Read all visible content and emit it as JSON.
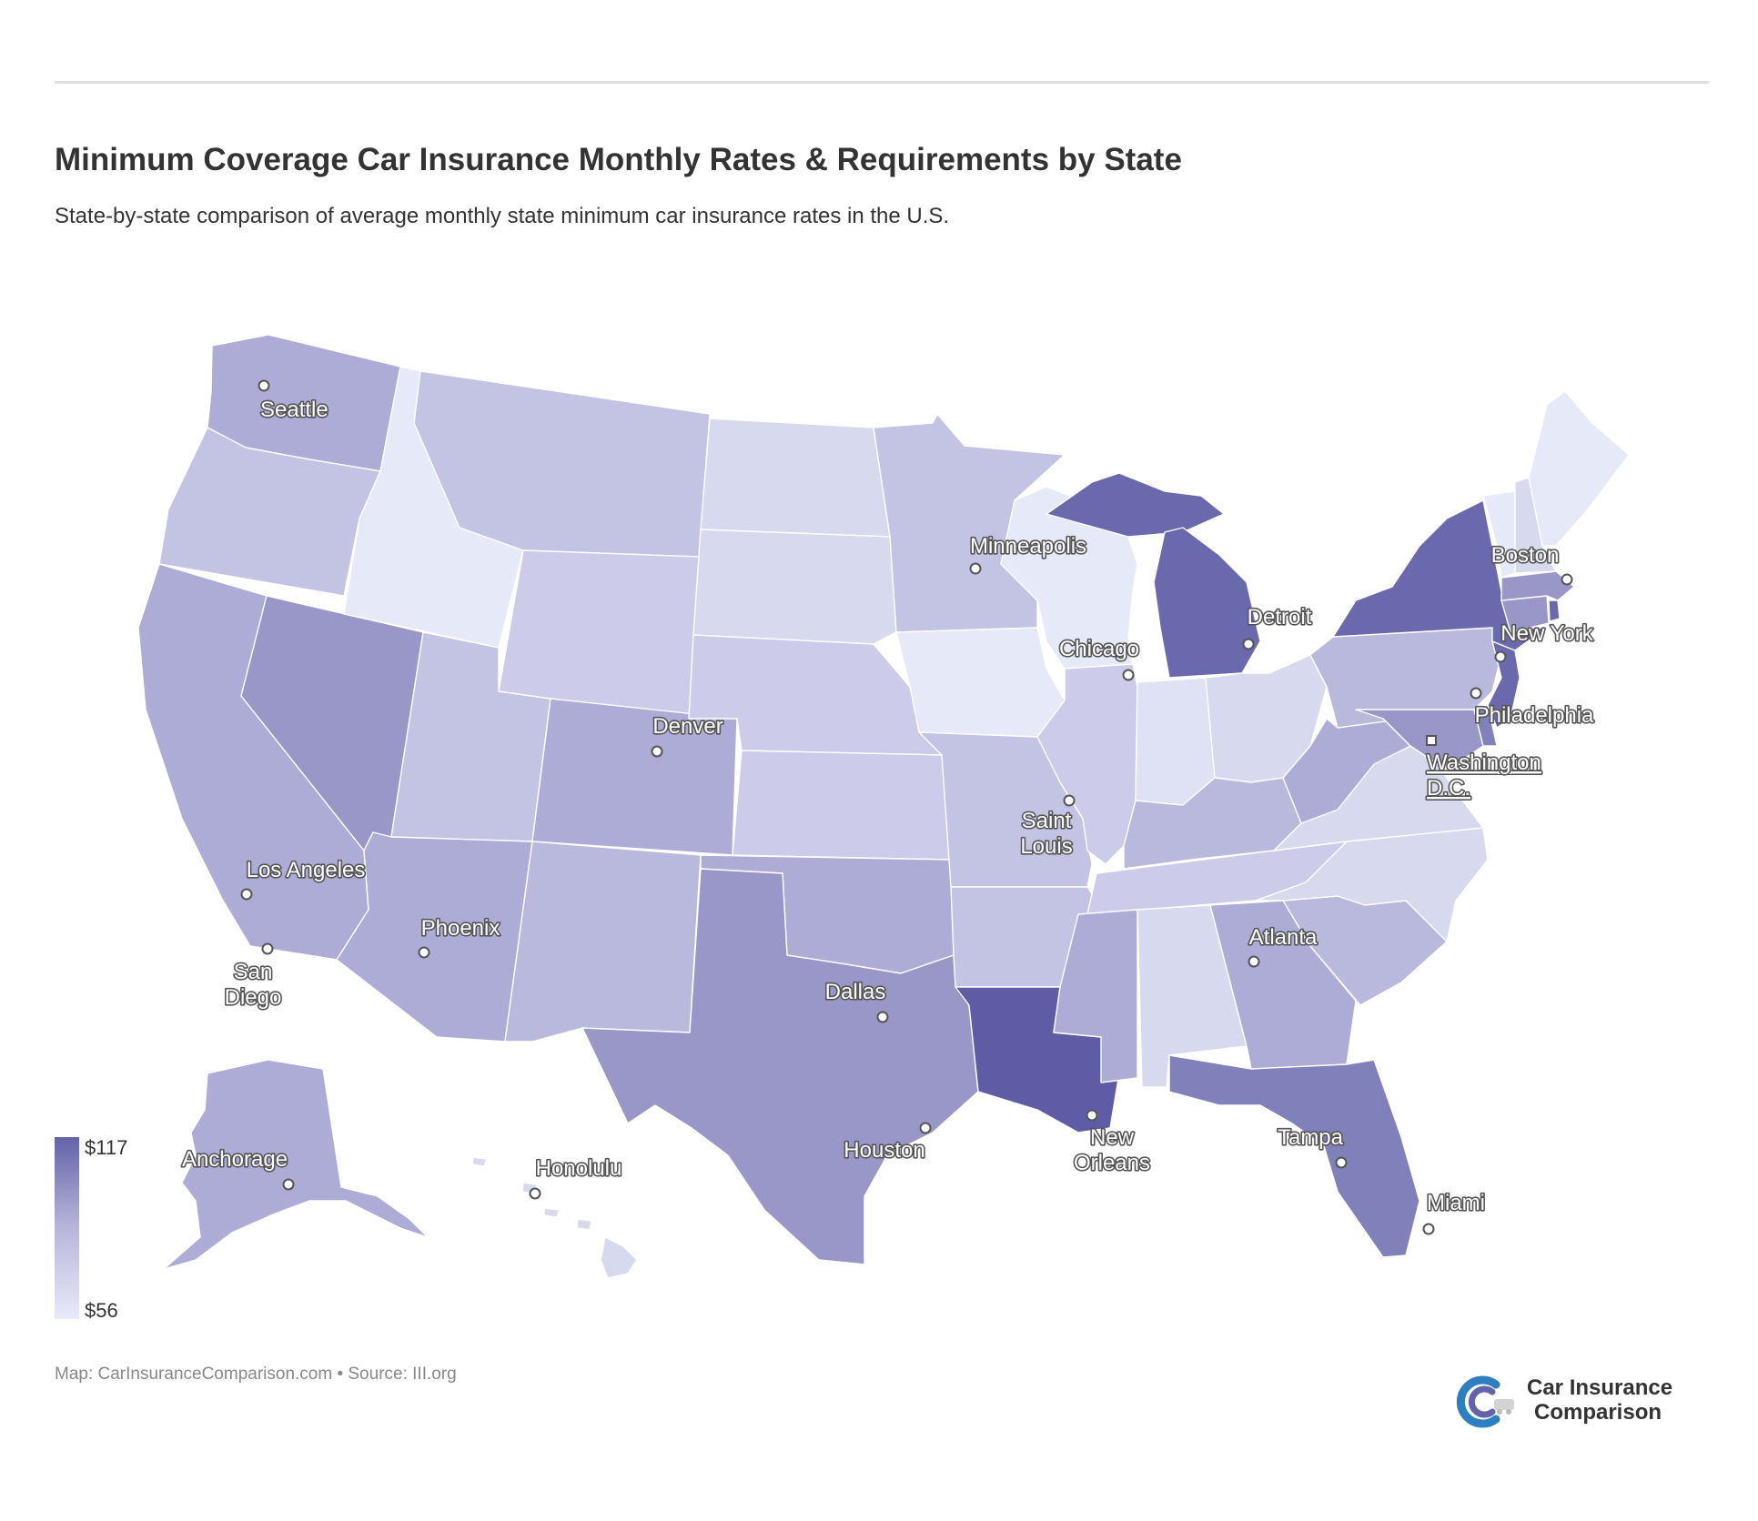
{
  "header": {
    "title": "Minimum Coverage Car Insurance Monthly Rates & Requirements by State",
    "subtitle": "State-by-state comparison of average monthly state minimum car insurance rates in the U.S."
  },
  "legend": {
    "max_label": "$117",
    "min_label": "$56",
    "min_value": 56,
    "max_value": 117,
    "color_low": "#e8eafa",
    "color_high": "#6263a8"
  },
  "footer": {
    "credit": "Map: CarInsuranceComparison.com • Source: III.org"
  },
  "logo": {
    "line1": "Car Insurance",
    "line2": "Comparison",
    "icon": "car-insurance-comparison-logo-icon"
  },
  "map": {
    "type": "choropleth",
    "colors": {
      "c1": "#e6e9f8",
      "c2": "#dfe1f4",
      "c3": "#d7d9ef",
      "c4": "#ccccea",
      "c5": "#c3c3e4",
      "c6": "#b9b8dd",
      "c7": "#adacd6",
      "c8": "#9897c8",
      "c9": "#8080bb",
      "c10": "#6a69ad",
      "c11": "#5d5ca4"
    },
    "cities": [
      {
        "name": "Seattle",
        "line2": ""
      },
      {
        "name": "Minneapolis",
        "line2": ""
      },
      {
        "name": "Boston",
        "line2": ""
      },
      {
        "name": "Detroit",
        "line2": ""
      },
      {
        "name": "Chicago",
        "line2": ""
      },
      {
        "name": "New York",
        "line2": ""
      },
      {
        "name": "Denver",
        "line2": ""
      },
      {
        "name": "Philadelphia",
        "line2": ""
      },
      {
        "name": "Washington",
        "line2": "D.C."
      },
      {
        "name": "Saint",
        "line2": "Louis"
      },
      {
        "name": "Los Angeles",
        "line2": ""
      },
      {
        "name": "Phoenix",
        "line2": ""
      },
      {
        "name": "Atlanta",
        "line2": ""
      },
      {
        "name": "San",
        "line2": "Diego"
      },
      {
        "name": "Dallas",
        "line2": ""
      },
      {
        "name": "Houston",
        "line2": ""
      },
      {
        "name": "New",
        "line2": "Orleans"
      },
      {
        "name": "Tampa",
        "line2": ""
      },
      {
        "name": "Anchorage",
        "line2": ""
      },
      {
        "name": "Honolulu",
        "line2": ""
      },
      {
        "name": "Miami",
        "line2": ""
      }
    ]
  }
}
